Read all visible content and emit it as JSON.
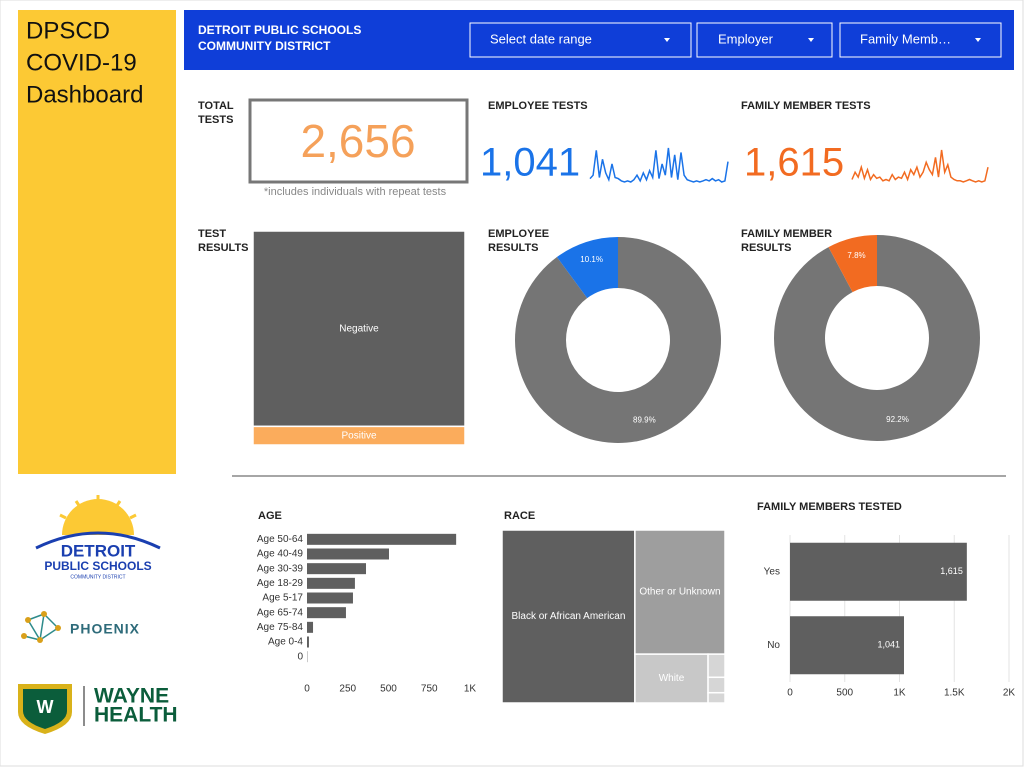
{
  "sidebar": {
    "title": [
      "DPSCD",
      "COVID-19",
      "Dashboard"
    ]
  },
  "logos": {
    "detroit": [
      "DETROIT",
      "PUBLIC SCHOOLS",
      "COMMUNITY DISTRICT"
    ],
    "phoenix": "PHOENIX",
    "wayne": [
      "WAYNE",
      "HEALTH"
    ]
  },
  "header": {
    "title": [
      "DETROIT PUBLIC SCHOOLS",
      "COMMUNITY DISTRICT"
    ],
    "filters": [
      "Select date range",
      "Employer",
      "Family Memb…"
    ]
  },
  "kpis": {
    "total": {
      "title": [
        "TOTAL",
        "TESTS"
      ],
      "value": "2,656",
      "note": "*includes individuals with repeat tests"
    },
    "employee": {
      "title": [
        "EMPLOYEE TESTS"
      ],
      "value": "1,041"
    },
    "family": {
      "title": [
        "FAMILY MEMBER TESTS"
      ],
      "value": "1,615"
    }
  },
  "chart_data": [
    {
      "type": "line",
      "color": "#1a73e8",
      "values": [
        5,
        8,
        30,
        6,
        22,
        10,
        4,
        18,
        6,
        5,
        3,
        2,
        3,
        2,
        4,
        8,
        3,
        10,
        4,
        12,
        6,
        30,
        5,
        18,
        8,
        32,
        6,
        26,
        4,
        28,
        8,
        4,
        3,
        2,
        3,
        2,
        3,
        4,
        3,
        5,
        3,
        4,
        2,
        3,
        20
      ]
    },
    {
      "type": "line",
      "color": "#f26b21",
      "values": [
        4,
        10,
        6,
        14,
        5,
        12,
        4,
        8,
        5,
        6,
        3,
        4,
        3,
        8,
        4,
        6,
        5,
        10,
        4,
        12,
        8,
        14,
        6,
        10,
        18,
        12,
        8,
        22,
        6,
        28,
        10,
        16,
        6,
        4,
        3,
        3,
        2,
        3,
        4,
        3,
        2,
        3,
        2,
        3,
        14
      ]
    },
    {
      "type": "treemap",
      "title": [
        "TEST",
        "RESULTS"
      ],
      "categories": [
        "Negative",
        "Positive"
      ],
      "values": [
        2425,
        231
      ],
      "colors": [
        "#5f5f5f",
        "#fbac5c"
      ]
    },
    {
      "type": "pie",
      "title": [
        "EMPLOYEE",
        "RESULTS"
      ],
      "values": [
        89.9,
        10.1
      ],
      "value_labels": [
        "89.9%",
        "10.1%"
      ],
      "colors": [
        "#757575",
        "#1a73e8"
      ]
    },
    {
      "type": "pie",
      "title": [
        "FAMILY MEMBER",
        "RESULTS"
      ],
      "values": [
        92.2,
        7.8
      ],
      "value_labels": [
        "92.2%",
        "7.8%"
      ],
      "colors": [
        "#757575",
        "#f26b21"
      ]
    },
    {
      "type": "bar",
      "title": [
        "AGE"
      ],
      "categories": [
        "Age 50-64",
        "Age 40-49",
        "Age 30-39",
        "Age 18-29",
        "Age 5-17",
        "Age 65-74",
        "Age 75-84",
        "Age 0-4",
        "0"
      ],
      "values": [
        915,
        503,
        362,
        294,
        282,
        239,
        37,
        12,
        2
      ],
      "color": "#5f5f5f",
      "xlim": [
        0,
        1000
      ],
      "xticks": [
        0,
        250,
        500,
        750,
        {
          "value": 1000,
          "label": "1K"
        }
      ],
      "grid": false
    },
    {
      "type": "treemap",
      "title": [
        "RACE"
      ],
      "categories": [
        "Black or African American",
        "Other or Unknown",
        "White",
        null,
        null,
        null
      ],
      "values": [
        1583,
        770,
        246,
        27,
        18,
        12
      ],
      "colors": [
        "#5f5f5f",
        "#9e9e9e",
        "#c8c8c8",
        "#d6d6d6",
        "#d6d6d6",
        "#d6d6d6"
      ]
    },
    {
      "type": "bar",
      "title": [
        "FAMILY MEMBERS TESTED"
      ],
      "categories": [
        "Yes",
        "No"
      ],
      "values": [
        1615,
        1041
      ],
      "value_labels": [
        "1,615",
        "1,041"
      ],
      "color": "#5f5f5f",
      "xlim": [
        0,
        2000
      ],
      "xticks": [
        0,
        500,
        {
          "value": 1000,
          "label": "1K"
        },
        {
          "value": 1500,
          "label": "1.5K"
        },
        {
          "value": 2000,
          "label": "2K"
        }
      ],
      "grid": true
    }
  ]
}
